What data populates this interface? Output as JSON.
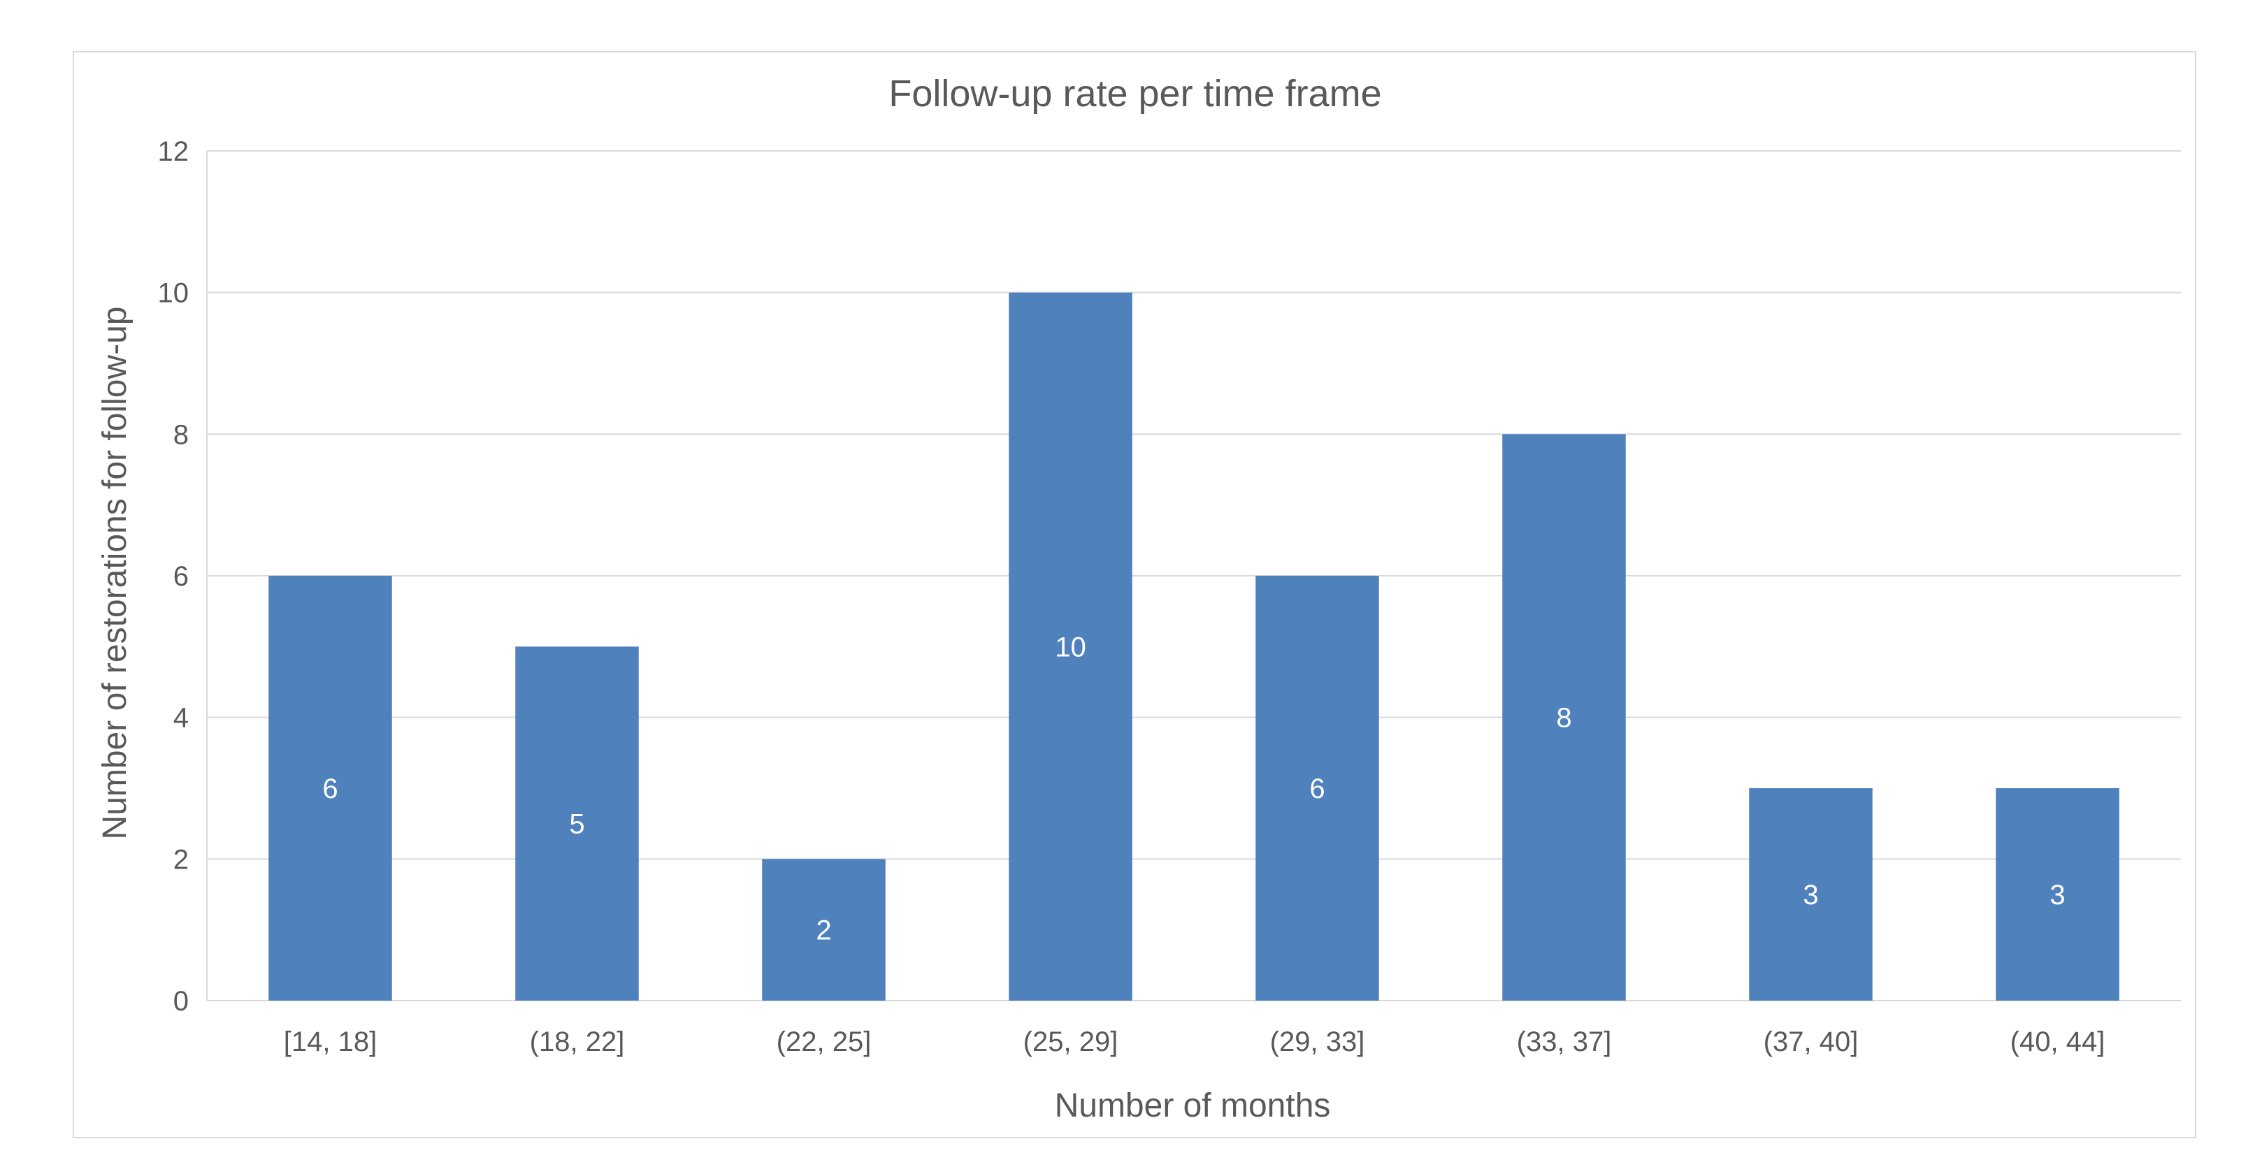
{
  "chart_data": {
    "type": "bar",
    "title": "Follow-up rate per time frame",
    "xlabel": "Number of months",
    "ylabel": "Number of restorations for follow-up",
    "categories": [
      "[14, 18]",
      "(18, 22]",
      "(22, 25]",
      "(25, 29]",
      "(29, 33]",
      "(33, 37]",
      "(37, 40]",
      "(40, 44]"
    ],
    "values": [
      6,
      5,
      2,
      10,
      6,
      8,
      3,
      3
    ],
    "data_labels": [
      "6",
      "5",
      "2",
      "10",
      "6",
      "8",
      "3",
      "3"
    ],
    "ylim": [
      0,
      12
    ],
    "yticks": [
      "0",
      "2",
      "4",
      "6",
      "8",
      "10",
      "12"
    ],
    "grid": true,
    "legend": "none",
    "colors": {
      "bar": "#4f81bd",
      "grid": "#d9d9d9",
      "axis": "#d9d9d9",
      "text": "#595959",
      "data_label": "#ffffff"
    }
  }
}
